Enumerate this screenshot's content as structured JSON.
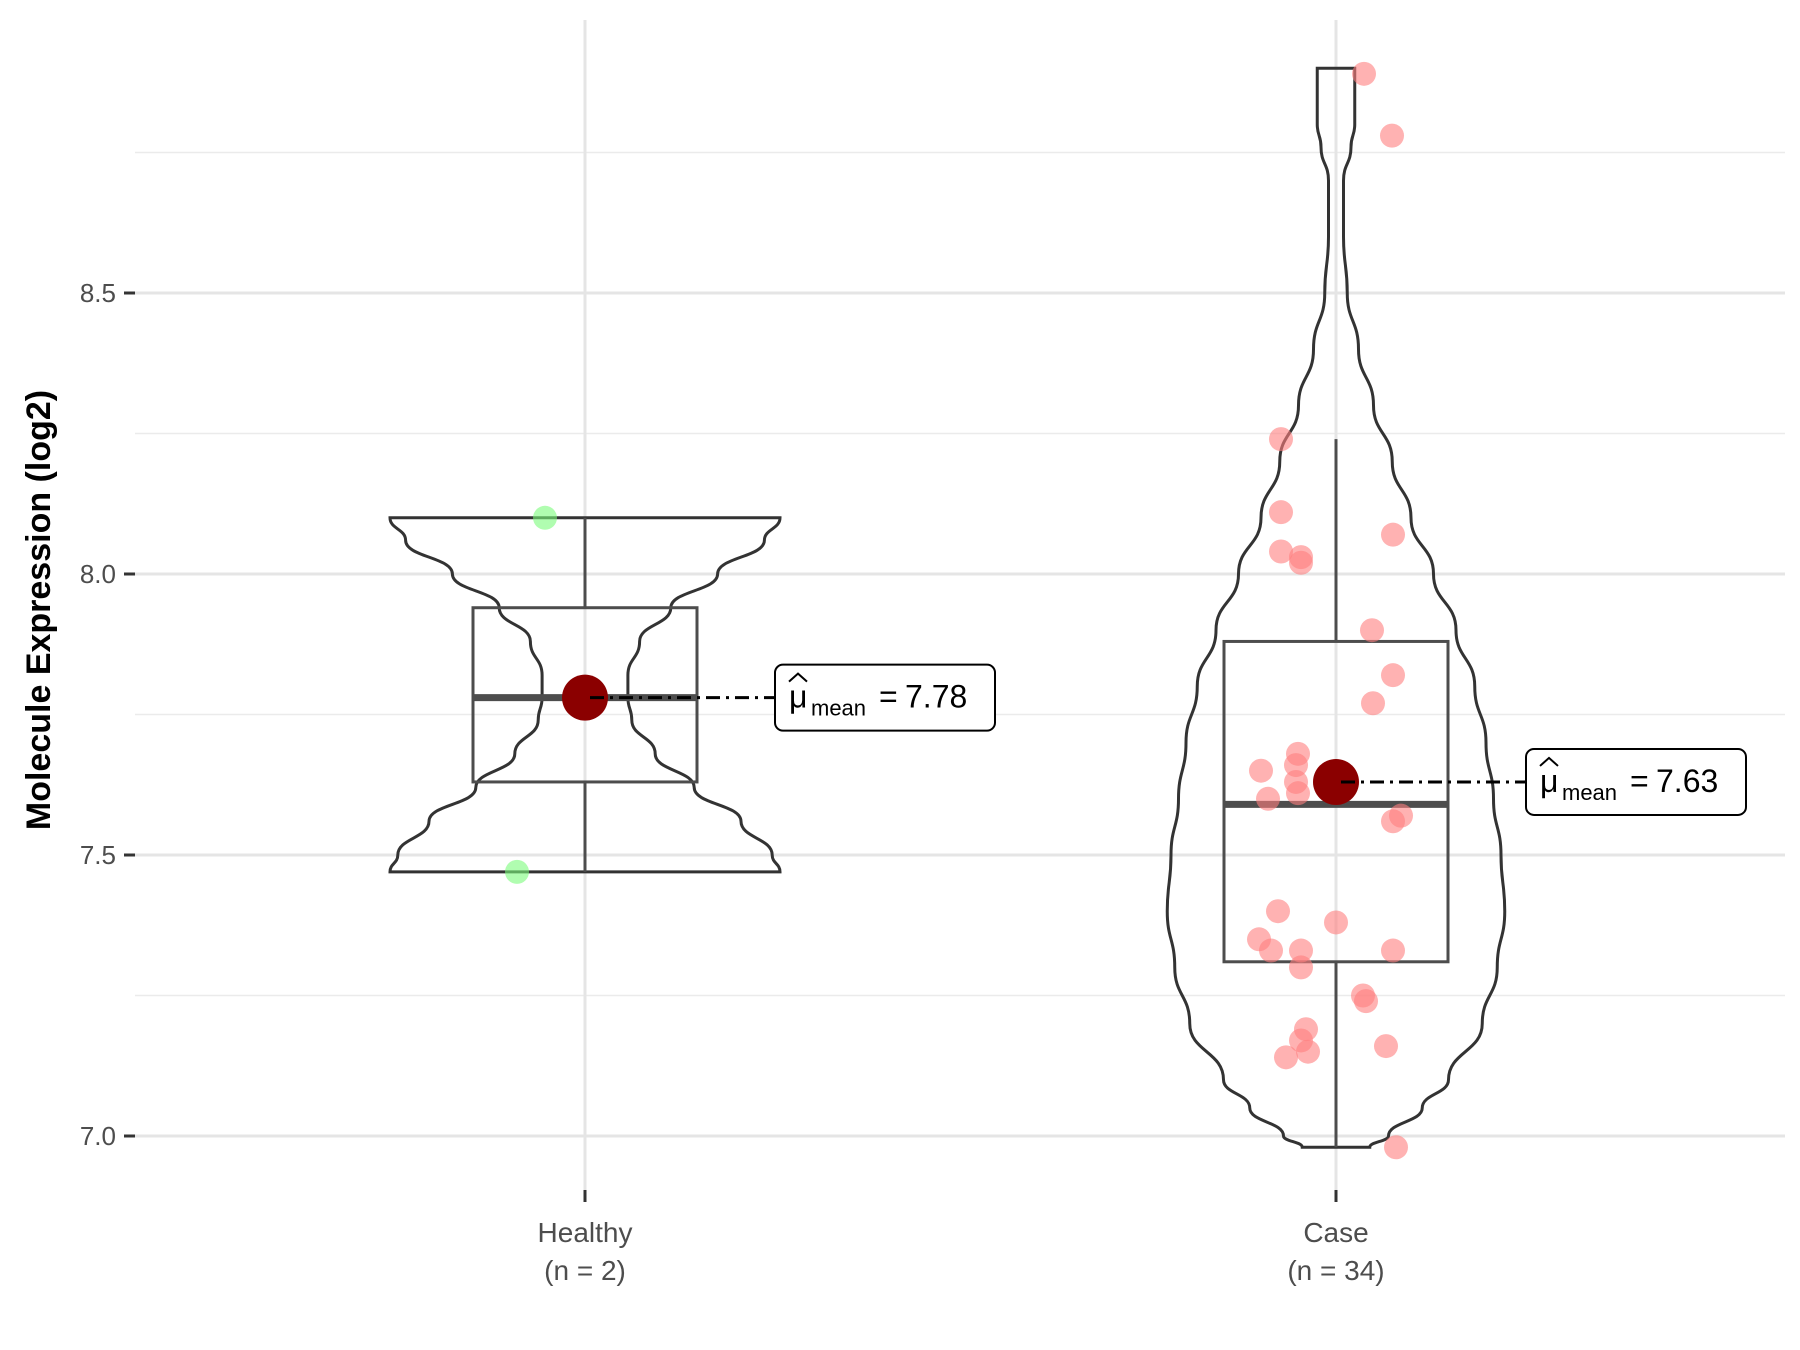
{
  "chart_data": {
    "type": "violin",
    "ylabel": "Molecule Expression (log2)",
    "xlabel": "",
    "ylim": [
      6.9,
      9.02
    ],
    "y_ticks": [
      7.0,
      7.5,
      8.0,
      8.5
    ],
    "y_tick_labels": [
      "7.0",
      "7.5",
      "8.0",
      "8.5"
    ],
    "grid": true,
    "groups": [
      {
        "name": "Healthy",
        "n_label": "(n = 2)",
        "color": "#7CFC7C",
        "points": [
          8.1,
          7.47
        ],
        "box": {
          "q1": 7.63,
          "median": 7.78,
          "q3": 7.94,
          "whisker_low": 7.47,
          "whisker_high": 8.1
        },
        "mean": 7.78,
        "mean_label": "7.78",
        "violin": [
          [
            8.1,
            0.5
          ],
          [
            8.06,
            0.46
          ],
          [
            8.0,
            0.34
          ],
          [
            7.94,
            0.22
          ],
          [
            7.88,
            0.14
          ],
          [
            7.82,
            0.11
          ],
          [
            7.78,
            0.11
          ],
          [
            7.74,
            0.12
          ],
          [
            7.68,
            0.18
          ],
          [
            7.62,
            0.28
          ],
          [
            7.56,
            0.4
          ],
          [
            7.5,
            0.48
          ],
          [
            7.47,
            0.5
          ]
        ]
      },
      {
        "name": "Case",
        "n_label": "(n = 34)",
        "color": "#FF7F7F",
        "points": [
          8.89,
          8.78,
          8.24,
          8.11,
          8.07,
          8.04,
          8.03,
          8.02,
          7.9,
          7.82,
          7.77,
          7.68,
          7.66,
          7.65,
          7.63,
          7.61,
          7.6,
          7.57,
          7.56,
          7.4,
          7.38,
          7.35,
          7.33,
          7.33,
          7.33,
          7.3,
          7.25,
          7.24,
          7.19,
          7.17,
          7.16,
          7.15,
          7.14,
          6.98
        ],
        "box": {
          "q1": 7.31,
          "median": 7.59,
          "q3": 7.88,
          "whisker_low": 6.98,
          "whisker_high": 8.24
        },
        "mean": 7.63,
        "mean_label": "7.63",
        "violin": [
          [
            8.9,
            0.05
          ],
          [
            8.86,
            0.05
          ],
          [
            8.8,
            0.05
          ],
          [
            8.76,
            0.04
          ],
          [
            8.7,
            0.02
          ],
          [
            8.6,
            0.02
          ],
          [
            8.5,
            0.03
          ],
          [
            8.4,
            0.06
          ],
          [
            8.3,
            0.1
          ],
          [
            8.2,
            0.15
          ],
          [
            8.1,
            0.2
          ],
          [
            8.0,
            0.26
          ],
          [
            7.9,
            0.32
          ],
          [
            7.8,
            0.37
          ],
          [
            7.7,
            0.4
          ],
          [
            7.6,
            0.42
          ],
          [
            7.5,
            0.44
          ],
          [
            7.4,
            0.45
          ],
          [
            7.3,
            0.43
          ],
          [
            7.2,
            0.39
          ],
          [
            7.1,
            0.3
          ],
          [
            7.05,
            0.23
          ],
          [
            7.0,
            0.14
          ],
          [
            6.98,
            0.09
          ]
        ]
      }
    ],
    "mean_annotation_symbol": "μ",
    "mean_annotation_subscript": "mean"
  }
}
